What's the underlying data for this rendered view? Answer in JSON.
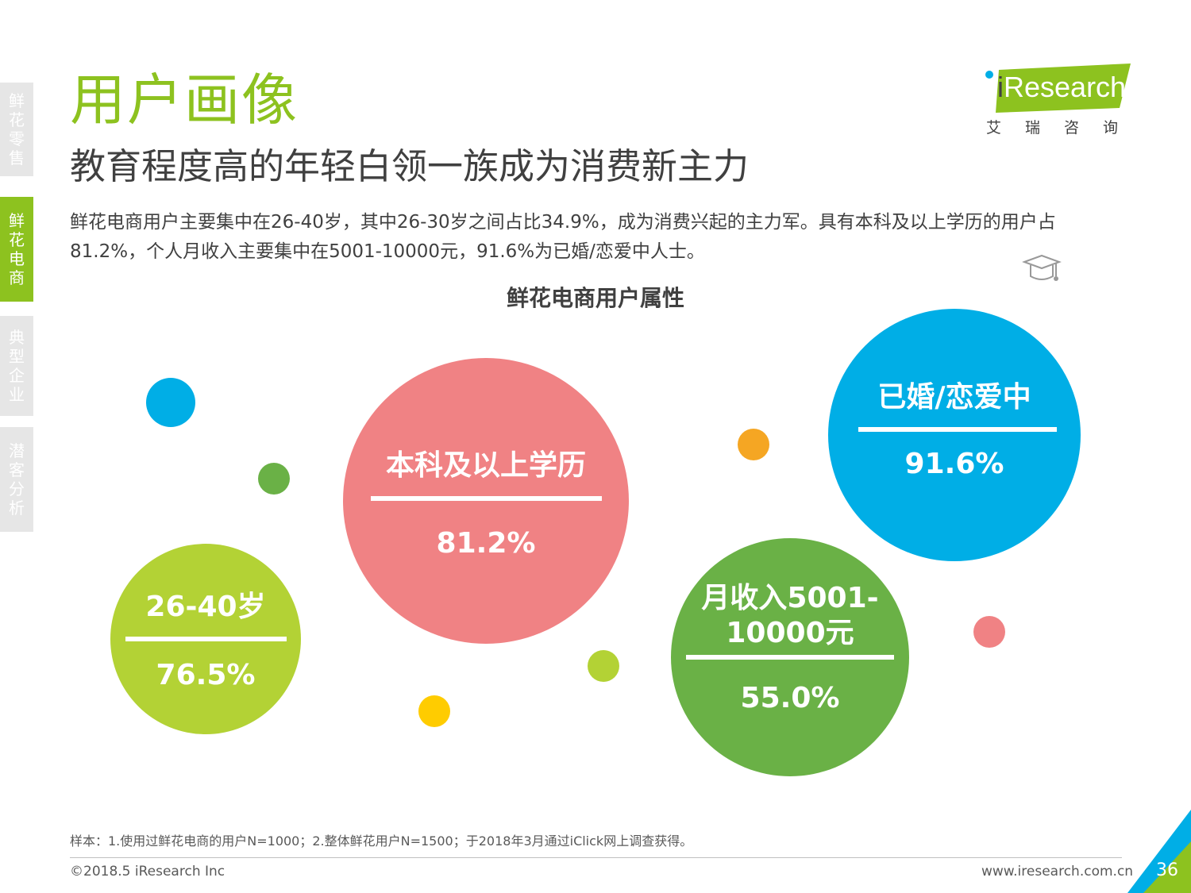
{
  "nav": {
    "items": [
      {
        "label": "鲜花零售"
      },
      {
        "label": "鲜花电商"
      },
      {
        "label": "典型企业"
      },
      {
        "label": "潜客分析"
      }
    ]
  },
  "header": {
    "title": "用户画像",
    "subtitle": "教育程度高的年轻白领一族成为消费新主力",
    "intro": "鲜花电商用户主要集中在26-40岁，其中26-30岁之间占比34.9%，成为消费兴起的主力军。具有本科及以上学历的用户占81.2%，个人月收入主要集中在5001-10000元，91.6%为已婚/恋爱中人士。"
  },
  "logo": {
    "brand": "Research",
    "brand_prefix": "i",
    "tagline": "艾瑞咨询"
  },
  "chart": {
    "title": "鲜花电商用户属性",
    "stats": [
      {
        "label": "26-40岁",
        "value": "76.5%",
        "color": "#b3d235"
      },
      {
        "label": "本科及以上学历",
        "value": "81.2%",
        "color": "#f08284"
      },
      {
        "label": "月收入5001-\n10000元",
        "value": "55.0%",
        "color": "#6ab146"
      },
      {
        "label": "已婚/恋爱中",
        "value": "91.6%",
        "color": "#00aee6"
      }
    ],
    "decor_colors": [
      "#00aee6",
      "#6ab146",
      "#f5a623",
      "#b3d235",
      "#ffcc00",
      "#f08284"
    ]
  },
  "footer": {
    "footnote": "样本：1.使用过鲜花电商的用户N=1000；2.整体鲜花用户N=1500；于2018年3月通过iClick网上调查获得。",
    "copyright": "©2018.5 iResearch Inc",
    "website": "www.iresearch.com.cn",
    "page_number": "36"
  }
}
